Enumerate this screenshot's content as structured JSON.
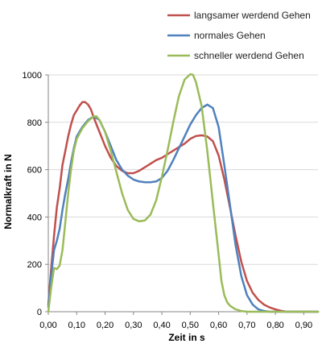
{
  "chart_data": {
    "type": "line",
    "title": "",
    "xlabel": "Zeit in s",
    "ylabel": "Normalkraft in N",
    "xlim": [
      0,
      0.95
    ],
    "ylim": [
      0,
      1000
    ],
    "grid": "horizontal",
    "legend_position": "top-right",
    "x_ticks": [
      0,
      0.1,
      0.2,
      0.3,
      0.4,
      0.5,
      0.6,
      0.7,
      0.8,
      0.9
    ],
    "x_tick_labels": [
      "0,00",
      "0,10",
      "0,20",
      "0,30",
      "0,40",
      "0,50",
      "0,60",
      "0,70",
      "0,80",
      "0,90"
    ],
    "y_ticks": [
      0,
      200,
      400,
      600,
      800,
      1000
    ],
    "y_tick_labels": [
      "0",
      "200",
      "400",
      "600",
      "800",
      "1000"
    ],
    "series": [
      {
        "name": "langsamer werdend Gehen",
        "color": "#C0504D",
        "points": [
          [
            0.0,
            30
          ],
          [
            0.01,
            180
          ],
          [
            0.02,
            320
          ],
          [
            0.03,
            440
          ],
          [
            0.04,
            520
          ],
          [
            0.05,
            620
          ],
          [
            0.06,
            680
          ],
          [
            0.07,
            740
          ],
          [
            0.08,
            790
          ],
          [
            0.09,
            830
          ],
          [
            0.1,
            850
          ],
          [
            0.11,
            870
          ],
          [
            0.12,
            885
          ],
          [
            0.13,
            885
          ],
          [
            0.14,
            875
          ],
          [
            0.15,
            855
          ],
          [
            0.16,
            820
          ],
          [
            0.18,
            760
          ],
          [
            0.2,
            700
          ],
          [
            0.22,
            650
          ],
          [
            0.24,
            615
          ],
          [
            0.26,
            595
          ],
          [
            0.28,
            585
          ],
          [
            0.3,
            585
          ],
          [
            0.32,
            595
          ],
          [
            0.34,
            610
          ],
          [
            0.36,
            625
          ],
          [
            0.38,
            640
          ],
          [
            0.4,
            650
          ],
          [
            0.42,
            665
          ],
          [
            0.44,
            680
          ],
          [
            0.46,
            695
          ],
          [
            0.48,
            710
          ],
          [
            0.5,
            730
          ],
          [
            0.52,
            742
          ],
          [
            0.54,
            745
          ],
          [
            0.56,
            740
          ],
          [
            0.58,
            720
          ],
          [
            0.6,
            660
          ],
          [
            0.62,
            560
          ],
          [
            0.64,
            440
          ],
          [
            0.66,
            320
          ],
          [
            0.68,
            210
          ],
          [
            0.7,
            130
          ],
          [
            0.72,
            80
          ],
          [
            0.74,
            50
          ],
          [
            0.76,
            30
          ],
          [
            0.78,
            18
          ],
          [
            0.8,
            10
          ],
          [
            0.82,
            4
          ],
          [
            0.84,
            0
          ],
          [
            0.95,
            0
          ]
        ]
      },
      {
        "name": "normales Gehen",
        "color": "#4F81BD",
        "points": [
          [
            0.0,
            20
          ],
          [
            0.01,
            150
          ],
          [
            0.02,
            260
          ],
          [
            0.03,
            300
          ],
          [
            0.04,
            350
          ],
          [
            0.05,
            430
          ],
          [
            0.06,
            500
          ],
          [
            0.07,
            560
          ],
          [
            0.08,
            630
          ],
          [
            0.09,
            690
          ],
          [
            0.1,
            740
          ],
          [
            0.12,
            780
          ],
          [
            0.14,
            810
          ],
          [
            0.16,
            825
          ],
          [
            0.18,
            810
          ],
          [
            0.2,
            760
          ],
          [
            0.22,
            700
          ],
          [
            0.24,
            640
          ],
          [
            0.26,
            600
          ],
          [
            0.28,
            575
          ],
          [
            0.3,
            558
          ],
          [
            0.32,
            550
          ],
          [
            0.34,
            547
          ],
          [
            0.36,
            547
          ],
          [
            0.38,
            550
          ],
          [
            0.4,
            565
          ],
          [
            0.42,
            595
          ],
          [
            0.44,
            640
          ],
          [
            0.46,
            690
          ],
          [
            0.48,
            740
          ],
          [
            0.5,
            790
          ],
          [
            0.52,
            830
          ],
          [
            0.54,
            860
          ],
          [
            0.56,
            875
          ],
          [
            0.58,
            860
          ],
          [
            0.6,
            780
          ],
          [
            0.62,
            620
          ],
          [
            0.64,
            450
          ],
          [
            0.66,
            280
          ],
          [
            0.68,
            150
          ],
          [
            0.7,
            70
          ],
          [
            0.72,
            30
          ],
          [
            0.74,
            10
          ],
          [
            0.76,
            3
          ],
          [
            0.78,
            0
          ],
          [
            0.95,
            0
          ]
        ]
      },
      {
        "name": "schneller werdend Gehen",
        "color": "#9BBB59",
        "points": [
          [
            0.0,
            0
          ],
          [
            0.01,
            100
          ],
          [
            0.02,
            185
          ],
          [
            0.03,
            180
          ],
          [
            0.04,
            195
          ],
          [
            0.05,
            260
          ],
          [
            0.06,
            380
          ],
          [
            0.07,
            500
          ],
          [
            0.08,
            600
          ],
          [
            0.09,
            680
          ],
          [
            0.1,
            730
          ],
          [
            0.12,
            775
          ],
          [
            0.14,
            805
          ],
          [
            0.16,
            825
          ],
          [
            0.17,
            825
          ],
          [
            0.18,
            810
          ],
          [
            0.2,
            760
          ],
          [
            0.22,
            680
          ],
          [
            0.24,
            590
          ],
          [
            0.26,
            500
          ],
          [
            0.28,
            430
          ],
          [
            0.3,
            392
          ],
          [
            0.32,
            382
          ],
          [
            0.34,
            385
          ],
          [
            0.36,
            410
          ],
          [
            0.38,
            470
          ],
          [
            0.4,
            570
          ],
          [
            0.42,
            680
          ],
          [
            0.44,
            800
          ],
          [
            0.46,
            910
          ],
          [
            0.48,
            980
          ],
          [
            0.5,
            1003
          ],
          [
            0.51,
            1000
          ],
          [
            0.52,
            970
          ],
          [
            0.54,
            870
          ],
          [
            0.56,
            680
          ],
          [
            0.58,
            460
          ],
          [
            0.6,
            240
          ],
          [
            0.61,
            130
          ],
          [
            0.62,
            70
          ],
          [
            0.63,
            40
          ],
          [
            0.64,
            25
          ],
          [
            0.66,
            10
          ],
          [
            0.68,
            3
          ],
          [
            0.7,
            0
          ],
          [
            0.95,
            0
          ]
        ]
      }
    ]
  }
}
